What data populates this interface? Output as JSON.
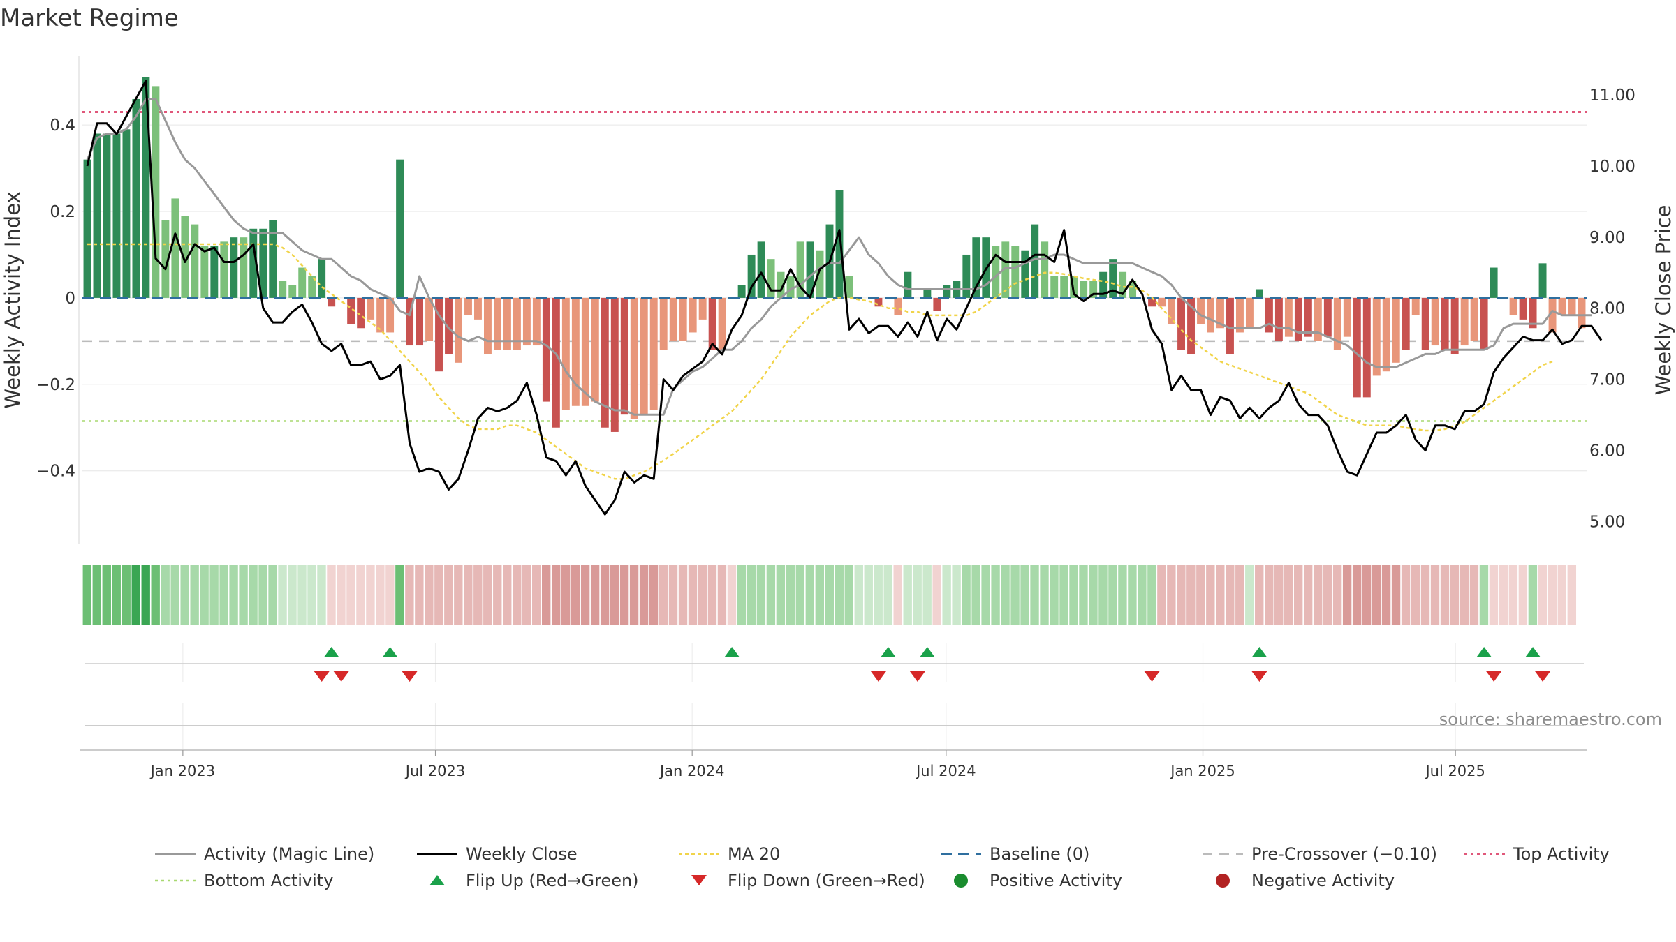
{
  "title": "Market Regime",
  "source": "source: sharemaestro.com",
  "colors": {
    "bar_strong_green": "#2e8b57",
    "bar_light_green": "#7cc07a",
    "bar_strong_red": "#c85250",
    "bar_light_red": "#e8967a",
    "magic_line": "#999999",
    "close_line": "#000000",
    "ma_line": "#f1d44a",
    "baseline": "#2f6f9f",
    "pre_crossover": "#bbbbbb",
    "top_activity": "#e0577a",
    "bottom_activity": "#a8d870",
    "flip_up": "#1aa14a",
    "flip_down": "#d62828",
    "positive": "#1a8c2e",
    "negative": "#b22222"
  },
  "chart_data": {
    "type": "bar",
    "title": "Market Regime",
    "ylabel_left": "Weekly Activity Index",
    "ylabel_right": "Weekly Close Price",
    "x_axis": {
      "start": "2022-10-21",
      "end": "2025-10-03",
      "tick_labels": [
        "Jan 2023",
        "Jul 2023",
        "Jan 2024",
        "Jul 2024",
        "Jan 2025",
        "Jul 2025"
      ]
    },
    "y_left": {
      "min": -0.57,
      "max": 0.56,
      "ticks": [
        0.4,
        0.2,
        0,
        -0.2,
        -0.4
      ],
      "tick_labels": [
        "0.4",
        "0.2",
        "0",
        "−0.2",
        "−0.4"
      ]
    },
    "y_right": {
      "min": 4.68,
      "max": 11.55,
      "ticks": [
        11,
        10,
        9,
        8,
        7,
        6,
        5
      ],
      "tick_labels": [
        "11.00",
        "10.00",
        "9.00",
        "8.00",
        "7.00",
        "6.00",
        "5.00"
      ]
    },
    "reference_lines": {
      "baseline": 0,
      "pre_crossover": -0.1,
      "top_activity": 0.43,
      "bottom_activity": -0.285
    },
    "activity_bars": [
      0.32,
      0.38,
      0.38,
      0.38,
      0.39,
      0.46,
      0.51,
      0.49,
      0.18,
      0.23,
      0.19,
      0.17,
      0.12,
      0.12,
      0.13,
      0.14,
      0.14,
      0.16,
      0.16,
      0.18,
      0.04,
      0.03,
      0.07,
      0.05,
      0.09,
      -0.02,
      0.0,
      -0.06,
      -0.07,
      -0.05,
      -0.08,
      -0.08,
      0.32,
      -0.11,
      -0.11,
      -0.1,
      -0.17,
      -0.13,
      -0.15,
      -0.04,
      -0.05,
      -0.13,
      -0.12,
      -0.12,
      -0.12,
      -0.11,
      -0.11,
      -0.24,
      -0.3,
      -0.26,
      -0.25,
      -0.25,
      -0.24,
      -0.3,
      -0.31,
      -0.27,
      -0.28,
      -0.27,
      -0.26,
      -0.12,
      -0.1,
      -0.1,
      -0.08,
      -0.05,
      -0.12,
      -0.12,
      0.0,
      0.03,
      0.1,
      0.13,
      0.09,
      0.06,
      0.05,
      0.13,
      0.13,
      0.11,
      0.17,
      0.25,
      0.05,
      0.0,
      0.0,
      -0.02,
      0.0,
      -0.04,
      0.06,
      0.0,
      0.02,
      -0.03,
      0.03,
      0.04,
      0.1,
      0.14,
      0.14,
      0.12,
      0.13,
      0.12,
      0.11,
      0.17,
      0.13,
      0.05,
      0.05,
      0.05,
      0.04,
      0.04,
      0.06,
      0.09,
      0.06,
      0.04,
      0.0,
      -0.02,
      -0.02,
      -0.06,
      -0.12,
      -0.13,
      -0.06,
      -0.08,
      -0.07,
      -0.13,
      -0.08,
      -0.07,
      0.02,
      -0.08,
      -0.1,
      -0.09,
      -0.1,
      -0.09,
      -0.1,
      -0.09,
      -0.12,
      -0.09,
      -0.23,
      -0.23,
      -0.18,
      -0.17,
      -0.15,
      -0.12,
      -0.04,
      -0.12,
      -0.11,
      -0.12,
      -0.13,
      -0.11,
      -0.1,
      -0.12,
      0.07,
      0.0,
      -0.04,
      -0.05,
      -0.07,
      0.08,
      -0.08,
      -0.04,
      -0.04,
      -0.07
    ],
    "bar_shade": [
      "s",
      "s",
      "s",
      "s",
      "s",
      "s",
      "s",
      "l",
      "l",
      "l",
      "l",
      "l",
      "l",
      "s",
      "l",
      "s",
      "l",
      "s",
      "s",
      "s",
      "l",
      "l",
      "l",
      "l",
      "s",
      "s",
      "s",
      "s",
      "s",
      "l",
      "l",
      "l",
      "s",
      "s",
      "s",
      "l",
      "s",
      "s",
      "l",
      "l",
      "l",
      "l",
      "l",
      "l",
      "l",
      "l",
      "l",
      "s",
      "s",
      "l",
      "l",
      "l",
      "l",
      "s",
      "s",
      "s",
      "l",
      "l",
      "l",
      "l",
      "l",
      "l",
      "l",
      "l",
      "s",
      "l",
      "s",
      "s",
      "s",
      "s",
      "l",
      "l",
      "l",
      "l",
      "s",
      "l",
      "s",
      "s",
      "l",
      "s",
      "s",
      "s",
      "s",
      "l",
      "s",
      "l",
      "s",
      "s",
      "s",
      "s",
      "s",
      "s",
      "s",
      "l",
      "l",
      "l",
      "s",
      "s",
      "l",
      "l",
      "l",
      "l",
      "l",
      "l",
      "s",
      "s",
      "l",
      "l",
      "s",
      "s",
      "l",
      "l",
      "s",
      "s",
      "l",
      "l",
      "l",
      "s",
      "l",
      "l",
      "s",
      "s",
      "s",
      "l",
      "s",
      "s",
      "l",
      "s",
      "l",
      "l",
      "s",
      "s",
      "l",
      "l",
      "l",
      "s",
      "l",
      "s",
      "l",
      "s",
      "s",
      "l",
      "l",
      "s",
      "s",
      "s",
      "l",
      "s",
      "s",
      "s",
      "l",
      "l",
      "l"
    ],
    "series": [
      {
        "name": "Activity (Magic Line)",
        "axis": "left",
        "values": [
          0.32,
          0.37,
          0.38,
          0.38,
          0.39,
          0.42,
          0.46,
          0.46,
          0.41,
          0.36,
          0.32,
          0.3,
          0.27,
          0.24,
          0.21,
          0.18,
          0.16,
          0.15,
          0.15,
          0.15,
          0.15,
          0.13,
          0.11,
          0.1,
          0.09,
          0.09,
          0.07,
          0.05,
          0.04,
          0.02,
          0.01,
          0.0,
          -0.03,
          -0.04,
          0.05,
          0.0,
          -0.04,
          -0.07,
          -0.09,
          -0.1,
          -0.09,
          -0.1,
          -0.1,
          -0.1,
          -0.1,
          -0.1,
          -0.1,
          -0.11,
          -0.13,
          -0.17,
          -0.2,
          -0.22,
          -0.24,
          -0.25,
          -0.26,
          -0.26,
          -0.27,
          -0.27,
          -0.27,
          -0.27,
          -0.21,
          -0.19,
          -0.17,
          -0.16,
          -0.14,
          -0.12,
          -0.12,
          -0.1,
          -0.07,
          -0.05,
          -0.02,
          0.0,
          0.02,
          0.03,
          0.05,
          0.07,
          0.08,
          0.08,
          0.11,
          0.14,
          0.1,
          0.08,
          0.05,
          0.03,
          0.02,
          0.02,
          0.02,
          0.02,
          0.02,
          0.02,
          0.02,
          0.02,
          0.03,
          0.05,
          0.07,
          0.07,
          0.08,
          0.09,
          0.09,
          0.1,
          0.1,
          0.09,
          0.08,
          0.08,
          0.08,
          0.08,
          0.08,
          0.08,
          0.07,
          0.06,
          0.05,
          0.03,
          0.0,
          -0.02,
          -0.04,
          -0.05,
          -0.06,
          -0.07,
          -0.07,
          -0.07,
          -0.07,
          -0.06,
          -0.07,
          -0.07,
          -0.08,
          -0.08,
          -0.08,
          -0.09,
          -0.1,
          -0.11,
          -0.13,
          -0.15,
          -0.16,
          -0.16,
          -0.16,
          -0.15,
          -0.14,
          -0.13,
          -0.13,
          -0.12,
          -0.12,
          -0.12,
          -0.12,
          -0.12,
          -0.11,
          -0.07,
          -0.06,
          -0.06,
          -0.06,
          -0.06,
          -0.03,
          -0.04,
          -0.04,
          -0.04,
          -0.04
        ]
      },
      {
        "name": "Weekly Close",
        "axis": "right",
        "values": [
          10.0,
          10.6,
          10.6,
          10.45,
          10.7,
          10.95,
          11.2,
          8.7,
          8.55,
          9.05,
          8.65,
          8.9,
          8.8,
          8.85,
          8.65,
          8.65,
          8.75,
          8.9,
          8.0,
          7.8,
          7.8,
          7.95,
          8.05,
          7.8,
          7.5,
          7.4,
          7.5,
          7.2,
          7.2,
          7.25,
          7.0,
          7.05,
          7.2,
          6.1,
          5.7,
          5.75,
          5.7,
          5.45,
          5.6,
          6.0,
          6.45,
          6.6,
          6.55,
          6.6,
          6.7,
          6.95,
          6.5,
          5.9,
          5.85,
          5.65,
          5.85,
          5.5,
          5.3,
          5.1,
          5.3,
          5.7,
          5.55,
          5.65,
          5.6,
          7.0,
          6.85,
          7.05,
          7.15,
          7.25,
          7.5,
          7.35,
          7.7,
          7.9,
          8.3,
          8.5,
          8.25,
          8.25,
          8.55,
          8.3,
          8.15,
          8.55,
          8.65,
          9.1,
          7.7,
          7.85,
          7.65,
          7.75,
          7.75,
          7.6,
          7.8,
          7.6,
          7.95,
          7.55,
          7.85,
          7.7,
          8.0,
          8.3,
          8.55,
          8.75,
          8.65,
          8.65,
          8.65,
          8.75,
          8.75,
          8.65,
          9.1,
          8.2,
          8.1,
          8.2,
          8.2,
          8.25,
          8.2,
          8.4,
          8.2,
          7.7,
          7.5,
          6.85,
          7.05,
          6.85,
          6.85,
          6.5,
          6.75,
          6.7,
          6.45,
          6.6,
          6.45,
          6.6,
          6.7,
          6.95,
          6.65,
          6.5,
          6.5,
          6.35,
          6.0,
          5.7,
          5.65,
          5.95,
          6.25,
          6.25,
          6.35,
          6.5,
          6.15,
          6.0,
          6.35,
          6.35,
          6.3,
          6.55,
          6.55,
          6.65,
          7.1,
          7.3,
          7.45,
          7.6,
          7.55,
          7.55,
          7.7,
          7.5,
          7.55,
          7.75,
          7.75,
          7.55
        ]
      },
      {
        "name": "MA 20",
        "axis": "right",
        "values": [
          8.9,
          8.9,
          8.9,
          8.9,
          8.9,
          8.9,
          8.9,
          8.9,
          8.9,
          8.9,
          8.9,
          8.9,
          8.9,
          8.9,
          8.9,
          8.9,
          8.9,
          8.9,
          8.9,
          8.9,
          8.85,
          8.75,
          8.6,
          8.45,
          8.3,
          8.2,
          8.1,
          8.0,
          7.9,
          7.8,
          7.7,
          7.55,
          7.4,
          7.25,
          7.1,
          6.95,
          6.75,
          6.6,
          6.45,
          6.35,
          6.3,
          6.3,
          6.3,
          6.35,
          6.35,
          6.3,
          6.25,
          6.15,
          6.05,
          5.95,
          5.85,
          5.75,
          5.7,
          5.65,
          5.6,
          5.6,
          5.65,
          5.7,
          5.78,
          5.86,
          5.95,
          6.05,
          6.15,
          6.25,
          6.35,
          6.45,
          6.55,
          6.7,
          6.85,
          7.0,
          7.2,
          7.4,
          7.6,
          7.75,
          7.9,
          8.0,
          8.1,
          8.15,
          8.15,
          8.12,
          8.1,
          8.05,
          8.0,
          8.0,
          7.95,
          7.95,
          7.9,
          7.9,
          7.9,
          7.9,
          7.9,
          7.95,
          8.05,
          8.15,
          8.25,
          8.35,
          8.4,
          8.45,
          8.5,
          8.5,
          8.48,
          8.45,
          8.42,
          8.4,
          8.38,
          8.35,
          8.3,
          8.3,
          8.25,
          8.15,
          8.0,
          7.85,
          7.7,
          7.55,
          7.45,
          7.35,
          7.25,
          7.2,
          7.15,
          7.1,
          7.05,
          7.0,
          6.95,
          6.9,
          6.85,
          6.8,
          6.7,
          6.6,
          6.5,
          6.45,
          6.4,
          6.35,
          6.35,
          6.35,
          6.35,
          6.32,
          6.3,
          6.28,
          6.28,
          6.3,
          6.35,
          6.4,
          6.5,
          6.6,
          6.7,
          6.8,
          6.9,
          7.0,
          7.1,
          7.2,
          7.25
        ]
      }
    ],
    "regime_strip": [
      3,
      3,
      3,
      3,
      3,
      4,
      4,
      3,
      2,
      2,
      2,
      2,
      2,
      2,
      2,
      2,
      2,
      2,
      2,
      2,
      1,
      1,
      1,
      1,
      1,
      -1,
      -1,
      -1,
      -1,
      -1,
      -1,
      -1,
      3,
      -2,
      -2,
      -2,
      -2,
      -2,
      -2,
      -2,
      -2,
      -2,
      -2,
      -2,
      -2,
      -2,
      -2,
      -3,
      -3,
      -3,
      -3,
      -3,
      -3,
      -3,
      -3,
      -3,
      -3,
      -3,
      -3,
      -2,
      -2,
      -2,
      -2,
      -2,
      -2,
      -2,
      -1,
      2,
      2,
      2,
      2,
      2,
      2,
      2,
      2,
      2,
      2,
      2,
      2,
      1,
      1,
      1,
      1,
      -1,
      1,
      1,
      1,
      -1,
      1,
      1,
      2,
      2,
      2,
      2,
      2,
      2,
      2,
      2,
      2,
      2,
      2,
      2,
      2,
      2,
      2,
      2,
      2,
      2,
      2,
      2,
      -2,
      -2,
      -2,
      -2,
      -2,
      -2,
      -2,
      -2,
      -2,
      1,
      -2,
      -2,
      -2,
      -2,
      -2,
      -2,
      -2,
      -2,
      -2,
      -3,
      -3,
      -3,
      -3,
      -3,
      -3,
      -2,
      -2,
      -2,
      -2,
      -2,
      -2,
      -2,
      -2,
      2,
      -1,
      -1,
      -1,
      -1,
      2,
      -1,
      -1,
      -1,
      -1
    ],
    "flip_up_weeks": [
      25,
      31,
      66,
      82,
      86,
      120,
      143,
      148
    ],
    "flip_down_weeks": [
      24,
      26,
      33,
      81,
      85,
      109,
      120,
      144,
      149
    ],
    "legend": [
      "Activity (Magic Line)",
      "Weekly Close",
      "MA 20",
      "Baseline (0)",
      "Pre-Crossover (−0.10)",
      "Top Activity",
      "Bottom Activity",
      "Flip Up (Red→Green)",
      "Flip Down (Green→Red)",
      "Positive Activity",
      "Negative Activity"
    ]
  }
}
